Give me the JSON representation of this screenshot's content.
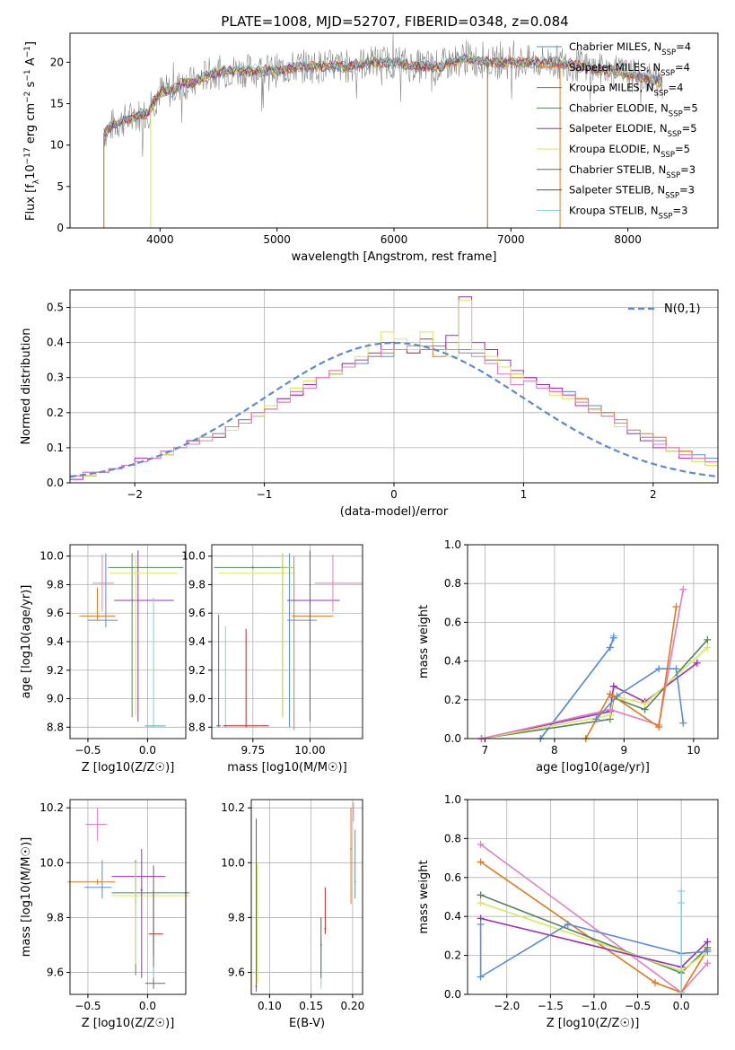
{
  "figure": {
    "title": "PLATE=1008, MJD=52707, FIBERID=0348, z=0.084"
  },
  "colors": {
    "blue": "#5b8bd6",
    "orange": "#e0791d",
    "brown": "#a56b28",
    "green": "#55835c",
    "purple": "#9b2fb7",
    "yellow": "#d6e85b",
    "gray": "#666666",
    "red": "#b52a2a",
    "cyan": "#7fd3e0",
    "pink": "#e27fbf",
    "lime": "#a8c858",
    "norm": "#5b8bd6"
  },
  "chart_data": [
    {
      "id": "spectrum",
      "type": "line",
      "xlabel": "wavelength [Angstrom, rest frame]",
      "ylabel": "Flux [f_λ 10^-17 erg cm^-2 s^-1 A^-1]",
      "xlim": [
        3230,
        8770
      ],
      "ylim": [
        0,
        23.5
      ],
      "xticks": [
        4000,
        5000,
        6000,
        7000,
        8000
      ],
      "yticks": [
        0,
        5,
        10,
        15,
        20
      ],
      "grid": false,
      "legend_position": "top-right",
      "x": [
        3530,
        3600,
        3700,
        3800,
        3900,
        4000,
        4100,
        4200,
        4300,
        4400,
        4600,
        4800,
        5000,
        5200,
        5400,
        5600,
        5800,
        6000,
        6200,
        6400,
        6600,
        6800,
        7000,
        7200,
        7400,
        7600,
        7800,
        8000,
        8200,
        8300
      ],
      "data": [
        11.5,
        12.5,
        13.0,
        13.5,
        14.0,
        16.5,
        16.5,
        17.5,
        17.5,
        18.5,
        19.0,
        19.0,
        19.0,
        19.5,
        19.5,
        19.5,
        20.0,
        20.0,
        19.5,
        19.5,
        20.5,
        20.0,
        20.0,
        20.0,
        20.0,
        19.5,
        19.0,
        18.5,
        18.0,
        17.5
      ],
      "series": [
        {
          "name": "Chabrier MILES, N_SSP=4",
          "color": "blue"
        },
        {
          "name": "Salpeter MILES, N_SSP=4",
          "color": "orange"
        },
        {
          "name": "Kroupa MILES, N_SSP=4",
          "color": "brown"
        },
        {
          "name": "Chabrier ELODIE, N_SSP=5",
          "color": "green"
        },
        {
          "name": "Salpeter ELODIE, N_SSP=5",
          "color": "purple"
        },
        {
          "name": "Kroupa ELODIE, N_SSP=5",
          "color": "yellow"
        },
        {
          "name": "Chabrier STELIB, N_SSP=3",
          "color": "gray"
        },
        {
          "name": "Salpeter STELIB, N_SSP=3",
          "color": "red"
        },
        {
          "name": "Kroupa STELIB, N_SSP=3",
          "color": "cyan"
        }
      ]
    },
    {
      "id": "residuals",
      "type": "line",
      "xlabel": "(data-model)/error",
      "ylabel": "Normed distribution",
      "xlim": [
        -2.5,
        2.5
      ],
      "ylim": [
        0,
        0.55
      ],
      "xticks": [
        -2,
        -1,
        0,
        1,
        2
      ],
      "yticks": [
        0,
        0.1,
        0.2,
        0.3,
        0.4,
        0.5
      ],
      "grid": true,
      "legend_position": "top-right",
      "legend": "N(0,1)",
      "bin_width": 0.1,
      "x_start": -2.5,
      "series": [
        {
          "color": "blue",
          "values": [
            0.02,
            0.03,
            0.03,
            0.04,
            0.05,
            0.06,
            0.07,
            0.08,
            0.1,
            0.11,
            0.13,
            0.14,
            0.16,
            0.18,
            0.2,
            0.21,
            0.24,
            0.26,
            0.28,
            0.3,
            0.31,
            0.34,
            0.34,
            0.36,
            0.36,
            0.38,
            0.38,
            0.38,
            0.39,
            0.38,
            0.37,
            0.37,
            0.35,
            0.33,
            0.31,
            0.3,
            0.28,
            0.26,
            0.26,
            0.24,
            0.22,
            0.2,
            0.17,
            0.15,
            0.13,
            0.12,
            0.1,
            0.09,
            0.08,
            0.07
          ]
        },
        {
          "color": "orange",
          "values": [
            0.02,
            0.02,
            0.03,
            0.04,
            0.05,
            0.06,
            0.07,
            0.08,
            0.1,
            0.12,
            0.13,
            0.14,
            0.16,
            0.18,
            0.2,
            0.21,
            0.23,
            0.25,
            0.27,
            0.3,
            0.32,
            0.33,
            0.35,
            0.36,
            0.37,
            0.38,
            0.37,
            0.38,
            0.36,
            0.4,
            0.38,
            0.38,
            0.35,
            0.33,
            0.3,
            0.3,
            0.28,
            0.26,
            0.25,
            0.24,
            0.21,
            0.2,
            0.18,
            0.15,
            0.14,
            0.13,
            0.1,
            0.09,
            0.07,
            0.06
          ]
        },
        {
          "color": "purple",
          "values": [
            0.01,
            0.02,
            0.03,
            0.04,
            0.05,
            0.07,
            0.07,
            0.09,
            0.1,
            0.12,
            0.13,
            0.13,
            0.16,
            0.17,
            0.19,
            0.22,
            0.24,
            0.25,
            0.28,
            0.3,
            0.31,
            0.34,
            0.35,
            0.37,
            0.4,
            0.38,
            0.37,
            0.41,
            0.38,
            0.42,
            0.53,
            0.4,
            0.38,
            0.35,
            0.32,
            0.3,
            0.28,
            0.27,
            0.25,
            0.22,
            0.2,
            0.19,
            0.16,
            0.14,
            0.12,
            0.1,
            0.09,
            0.07,
            0.06,
            0.05
          ]
        },
        {
          "color": "yellow",
          "values": [
            0.02,
            0.02,
            0.03,
            0.04,
            0.05,
            0.06,
            0.07,
            0.08,
            0.1,
            0.11,
            0.13,
            0.14,
            0.15,
            0.17,
            0.19,
            0.22,
            0.23,
            0.27,
            0.29,
            0.3,
            0.31,
            0.33,
            0.36,
            0.4,
            0.43,
            0.41,
            0.38,
            0.43,
            0.38,
            0.36,
            0.52,
            0.38,
            0.36,
            0.33,
            0.31,
            0.29,
            0.27,
            0.25,
            0.24,
            0.23,
            0.2,
            0.19,
            0.16,
            0.15,
            0.13,
            0.11,
            0.09,
            0.08,
            0.06,
            0.05
          ]
        },
        {
          "color": "pink",
          "values": [
            0.02,
            0.03,
            0.03,
            0.04,
            0.05,
            0.06,
            0.07,
            0.09,
            0.1,
            0.11,
            0.12,
            0.14,
            0.16,
            0.17,
            0.2,
            0.21,
            0.23,
            0.26,
            0.27,
            0.3,
            0.32,
            0.33,
            0.35,
            0.36,
            0.38,
            0.38,
            0.39,
            0.39,
            0.38,
            0.38,
            0.37,
            0.36,
            0.34,
            0.31,
            0.28,
            0.29,
            0.27,
            0.26,
            0.25,
            0.23,
            0.2,
            0.19,
            0.17,
            0.15,
            0.13,
            0.11,
            0.1,
            0.08,
            0.07,
            0.06
          ]
        }
      ]
    },
    {
      "id": "age-vs-z",
      "type": "scatter",
      "xlabel": "Z [log10(Z/Z☉)]",
      "ylabel": "age  [log10(age/yr)]",
      "xlim": [
        -0.65,
        0.32
      ],
      "ylim": [
        8.72,
        10.08
      ],
      "xticks": [
        -0.5,
        0.0
      ],
      "yticks": [
        8.8,
        9.0,
        9.2,
        9.4,
        9.6,
        9.8,
        10.0
      ],
      "grid": true
    },
    {
      "id": "age-vs-mass",
      "type": "scatter",
      "xlabel": "mass [log10(M/M☉)]",
      "ylabel": "",
      "xlim": [
        9.57,
        10.23
      ],
      "ylim": [
        8.72,
        10.08
      ],
      "xticks": [
        9.75,
        10.0
      ],
      "yticks": [
        8.8,
        9.0,
        9.2,
        9.4,
        9.6,
        9.8,
        10.0
      ],
      "grid": true
    },
    {
      "id": "massweight-vs-age",
      "type": "line",
      "xlabel": "age  [log10(age/yr)]",
      "ylabel": "mass weight",
      "xlim": [
        6.75,
        10.35
      ],
      "ylim": [
        0,
        1
      ],
      "xticks": [
        7,
        8,
        9,
        10
      ],
      "yticks": [
        0,
        0.2,
        0.4,
        0.6,
        0.8,
        1.0
      ],
      "grid": true
    },
    {
      "id": "mass-vs-z",
      "type": "scatter",
      "xlabel": "Z [log10(Z/Z☉)]",
      "ylabel": "mass [log10(M/M☉)]",
      "xlim": [
        -0.65,
        0.32
      ],
      "ylim": [
        9.52,
        10.23
      ],
      "xticks": [
        -0.5,
        0.0
      ],
      "yticks": [
        9.6,
        9.8,
        10.0,
        10.2
      ],
      "grid": true
    },
    {
      "id": "mass-vs-ebv",
      "type": "scatter",
      "xlabel": "E(B-V)",
      "ylabel": "",
      "xlim": [
        0.078,
        0.212
      ],
      "ylim": [
        9.52,
        10.23
      ],
      "xticks": [
        0.1,
        0.15,
        0.2
      ],
      "yticks": [
        9.6,
        9.8,
        10.0,
        10.2
      ],
      "grid": true
    },
    {
      "id": "massweight-vs-z",
      "type": "line",
      "xlabel": "Z [log10(Z/Z☉)]",
      "ylabel": "mass weight",
      "xlim": [
        -2.45,
        0.42
      ],
      "ylim": [
        0,
        1
      ],
      "xticks": [
        -2.0,
        -1.5,
        -1.0,
        -0.5,
        0.0
      ],
      "yticks": [
        0,
        0.2,
        0.4,
        0.6,
        0.8,
        1.0
      ],
      "grid": true
    }
  ]
}
